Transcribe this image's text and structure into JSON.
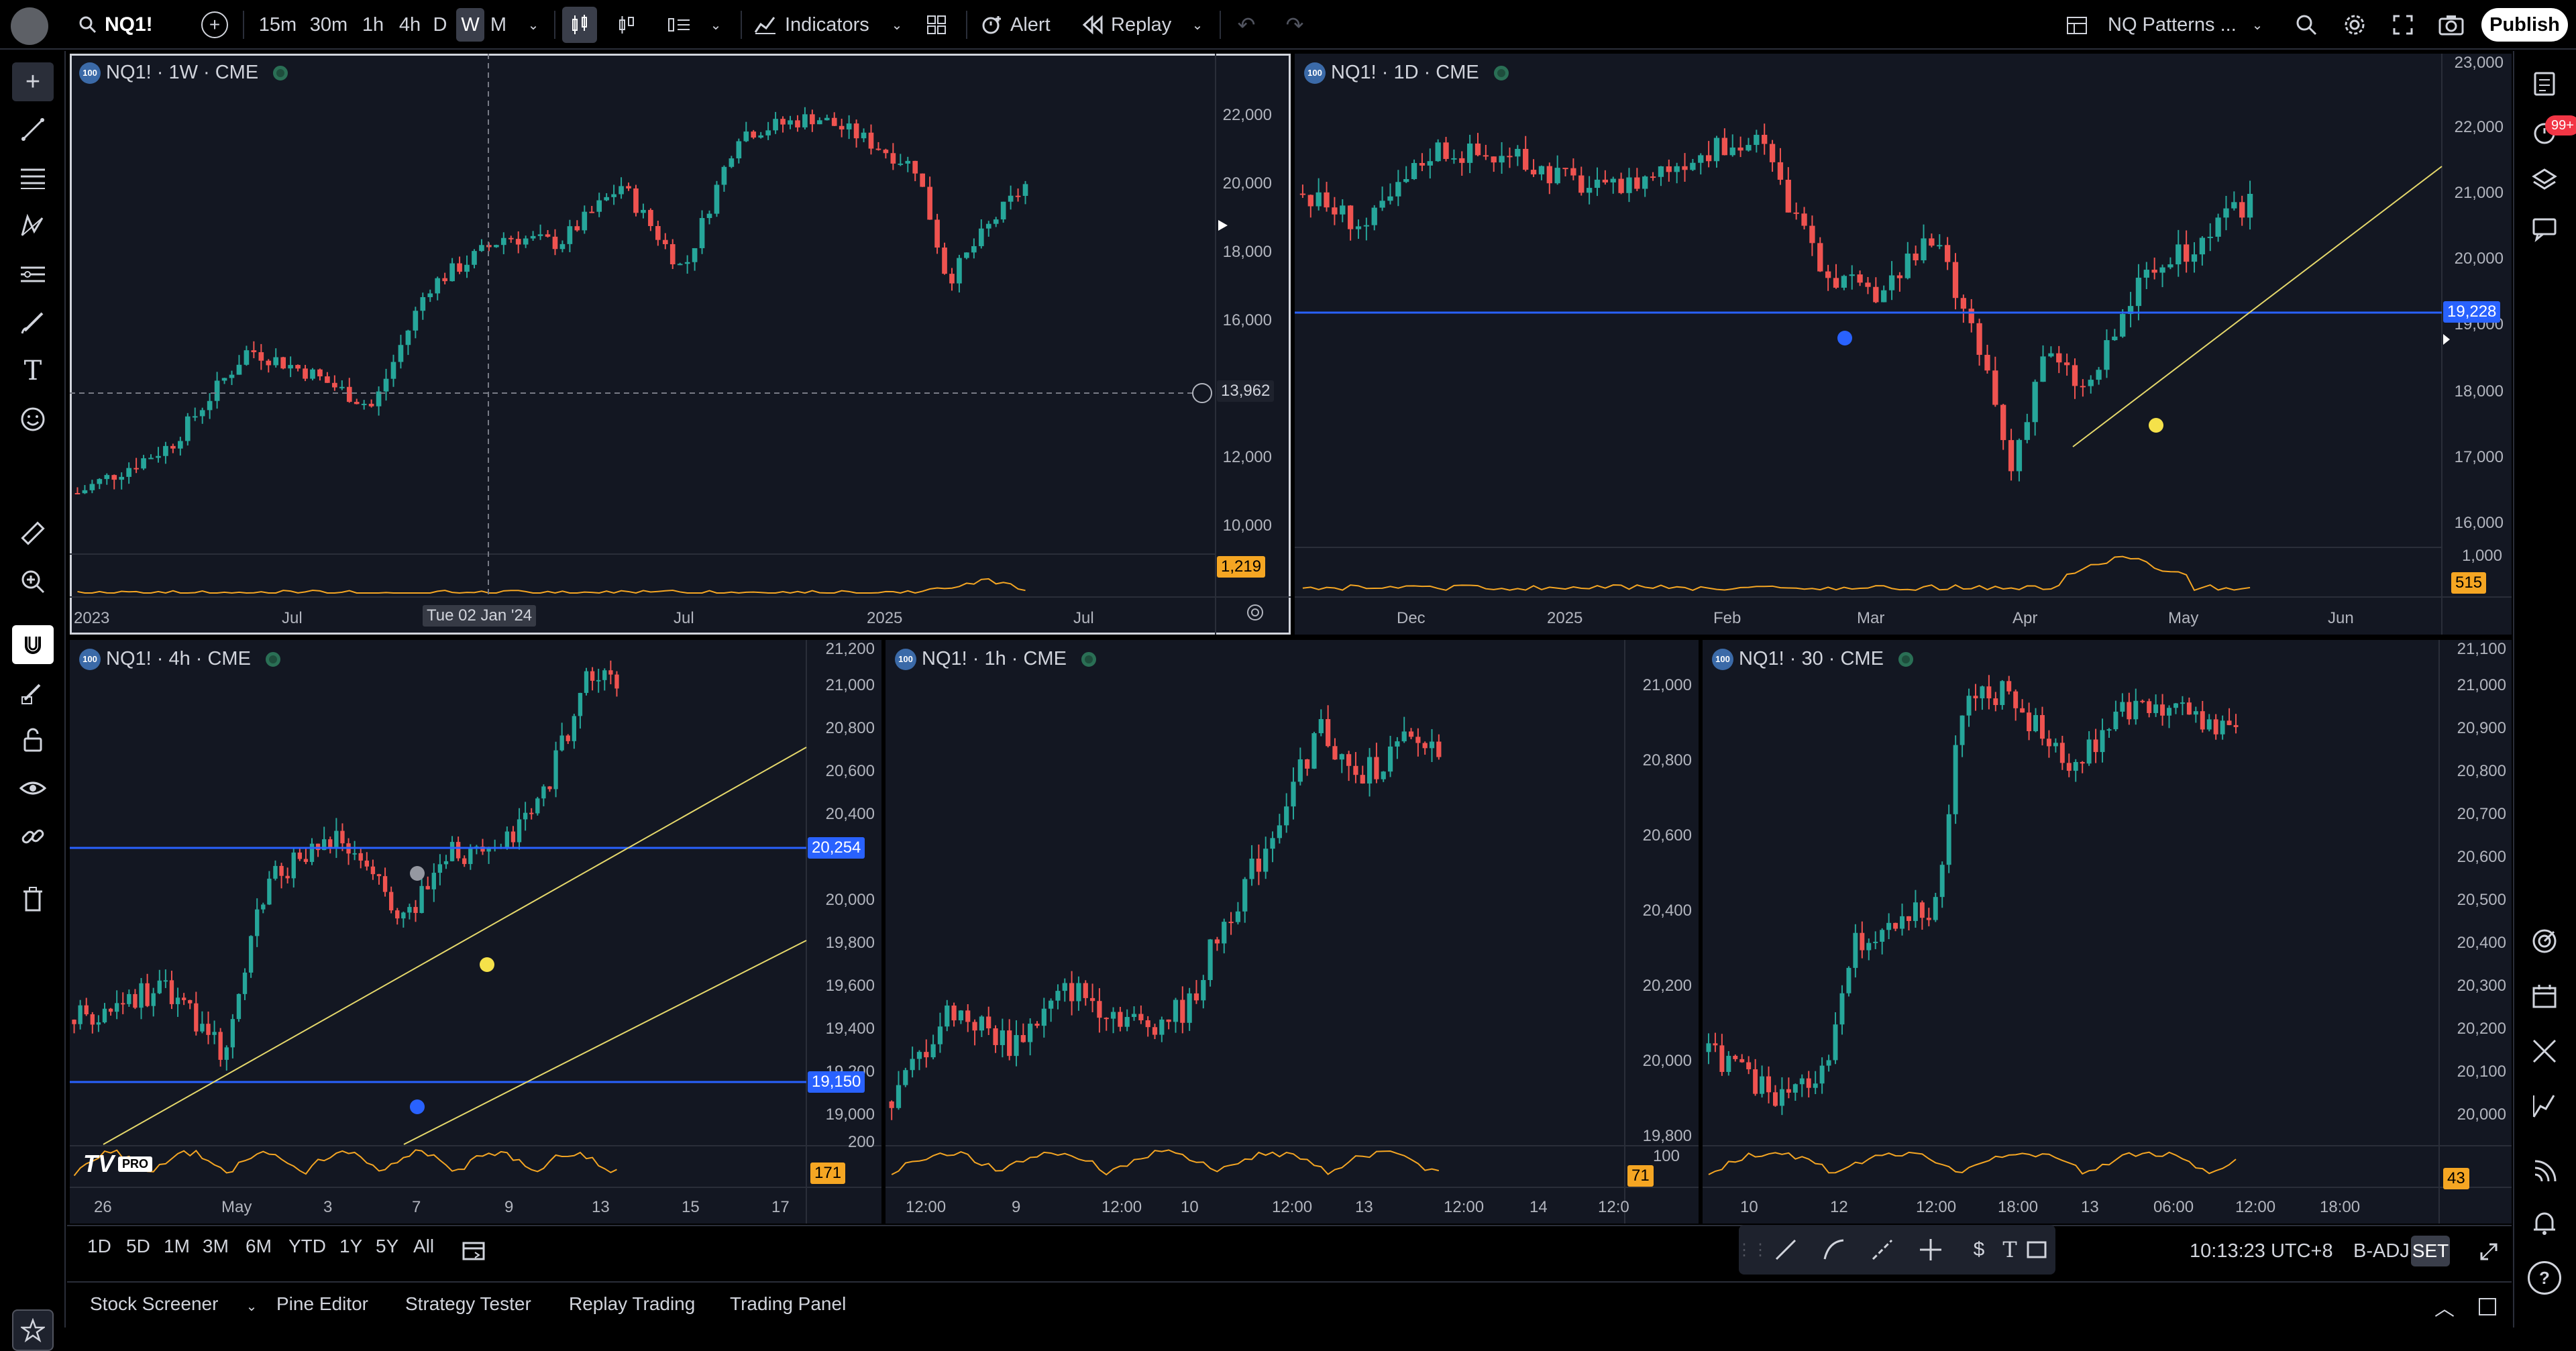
{
  "topbar": {
    "symbol": "NQ1!",
    "intervals": [
      "15m",
      "30m",
      "1h",
      "4h",
      "D",
      "W",
      "M"
    ],
    "active_interval": "W",
    "indicators_label": "Indicators",
    "alert_label": "Alert",
    "replay_label": "Replay",
    "layout_name": "NQ Patterns ...",
    "publish_label": "Publish"
  },
  "notifications_badge": "99+",
  "panes": {
    "weekly": {
      "legend": "NQ1! · 1W · CME",
      "badge": "100",
      "price_axis": [
        "22,000",
        "20,000",
        "18,000",
        "16,000",
        "12,000",
        "10,000"
      ],
      "crosshair_price": "13,962",
      "volume_label": "1,219",
      "crosshair_time": "Tue 02 Jan '24",
      "time_axis": [
        "2023",
        "Jul",
        "Jul",
        "2025",
        "Jul"
      ]
    },
    "daily": {
      "legend": "NQ1! · 1D · CME",
      "badge": "100",
      "price_axis": [
        "23,000",
        "22,000",
        "21,000",
        "20,000",
        "19,000",
        "18,000",
        "17,000",
        "16,000"
      ],
      "line_label": "19,228",
      "volume_axis": "1,000",
      "volume_label": "515",
      "time_axis": [
        "Dec",
        "2025",
        "Feb",
        "Mar",
        "Apr",
        "May",
        "Jun"
      ]
    },
    "h4": {
      "legend": "NQ1! · 4h · CME",
      "badge": "100",
      "price_axis": [
        "21,200",
        "21,000",
        "20,800",
        "20,600",
        "20,400",
        "20,000",
        "19,800",
        "19,600",
        "19,400",
        "19,200",
        "19,000"
      ],
      "line_label_upper": "20,254",
      "line_label_lower": "19,150",
      "volume_axis": "200",
      "volume_label": "171",
      "time_axis": [
        "26",
        "May",
        "3",
        "7",
        "9",
        "13",
        "15",
        "17"
      ],
      "logo_text": "PRO"
    },
    "h1": {
      "legend": "NQ1! · 1h · CME",
      "badge": "100",
      "price_axis": [
        "21,000",
        "20,800",
        "20,600",
        "20,400",
        "20,200",
        "20,000",
        "19,800"
      ],
      "volume_axis": "100",
      "volume_label": "71",
      "time_axis": [
        "12:00",
        "9",
        "12:00",
        "10",
        "12:00",
        "13",
        "12:00",
        "14",
        "12:0"
      ]
    },
    "m30": {
      "legend": "NQ1! · 30 · CME",
      "badge": "100",
      "price_axis": [
        "21,100",
        "21,000",
        "20,900",
        "20,800",
        "20,700",
        "20,600",
        "20,500",
        "20,400",
        "20,300",
        "20,200",
        "20,100",
        "20,000"
      ],
      "volume_label": "43",
      "time_axis": [
        "10",
        "12",
        "12:00",
        "18:00",
        "13",
        "06:00",
        "12:00",
        "18:00"
      ]
    }
  },
  "range_buttons": [
    "1D",
    "5D",
    "1M",
    "3M",
    "6M",
    "YTD",
    "1Y",
    "5Y",
    "All"
  ],
  "status": {
    "clock": "10:13:23 UTC+8",
    "adj": "B-ADJ",
    "session": "SET"
  },
  "bottom_tabs": [
    "Stock Screener",
    "Pine Editor",
    "Strategy Tester",
    "Replay Trading",
    "Trading Panel"
  ],
  "colors": {
    "up": "#26a69a",
    "down": "#ef5350",
    "hline": "#2962ff",
    "trend": "#e5d86b",
    "volume": "#f5a623",
    "pane_bg": "#131722"
  },
  "chart_data": [
    {
      "type": "candlestick",
      "title": "NQ1! · 1W · CME",
      "ylim": [
        9000,
        23500
      ],
      "shape": [
        [
          0,
          11000
        ],
        [
          0.12,
          12400
        ],
        [
          0.22,
          15200
        ],
        [
          0.3,
          14500
        ],
        [
          0.38,
          13500
        ],
        [
          0.45,
          17000
        ],
        [
          0.55,
          18500
        ],
        [
          0.62,
          18300
        ],
        [
          0.7,
          20000
        ],
        [
          0.78,
          17500
        ],
        [
          0.85,
          21500
        ],
        [
          0.95,
          22000
        ],
        [
          1.0,
          21500
        ],
        [
          1.08,
          20500
        ],
        [
          1.12,
          17200
        ],
        [
          1.18,
          19000
        ],
        [
          1.22,
          20000
        ]
      ]
    },
    {
      "type": "candlestick",
      "title": "NQ1! · 1D · CME",
      "ylim": [
        15500,
        23000
      ],
      "shape": [
        [
          0,
          21000
        ],
        [
          0.06,
          20500
        ],
        [
          0.12,
          21700
        ],
        [
          0.2,
          21500
        ],
        [
          0.28,
          21000
        ],
        [
          0.36,
          21600
        ],
        [
          0.42,
          21800
        ],
        [
          0.47,
          20000
        ],
        [
          0.52,
          19400
        ],
        [
          0.58,
          20300
        ],
        [
          0.63,
          18200
        ],
        [
          0.65,
          16800
        ],
        [
          0.68,
          18600
        ],
        [
          0.72,
          18000
        ],
        [
          0.77,
          19700
        ],
        [
          0.82,
          20200
        ],
        [
          0.87,
          20900
        ]
      ]
    },
    {
      "type": "candlestick",
      "title": "NQ1! · 4h · CME",
      "ylim": [
        18900,
        21200
      ],
      "shape": [
        [
          0,
          19400
        ],
        [
          0.15,
          19550
        ],
        [
          0.25,
          19250
        ],
        [
          0.32,
          20050
        ],
        [
          0.38,
          20150
        ],
        [
          0.45,
          20250
        ],
        [
          0.55,
          19850
        ],
        [
          0.62,
          20200
        ],
        [
          0.7,
          20150
        ],
        [
          0.78,
          20450
        ],
        [
          0.85,
          21000
        ],
        [
          0.9,
          20950
        ]
      ]
    },
    {
      "type": "candlestick",
      "title": "NQ1! · 1h · CME",
      "ylim": [
        19750,
        21100
      ],
      "shape": [
        [
          0,
          19900
        ],
        [
          0.1,
          20150
        ],
        [
          0.2,
          20050
        ],
        [
          0.3,
          20200
        ],
        [
          0.42,
          20100
        ],
        [
          0.5,
          20150
        ],
        [
          0.55,
          20350
        ],
        [
          0.62,
          20550
        ],
        [
          0.72,
          20900
        ],
        [
          0.78,
          20750
        ],
        [
          0.86,
          20850
        ],
        [
          0.92,
          20850
        ]
      ]
    },
    {
      "type": "candlestick",
      "title": "NQ1! · 30 · CME",
      "ylim": [
        19950,
        21150
      ],
      "shape": [
        [
          0,
          20150
        ],
        [
          0.1,
          20050
        ],
        [
          0.18,
          20100
        ],
        [
          0.22,
          20400
        ],
        [
          0.35,
          20500
        ],
        [
          0.38,
          20950
        ],
        [
          0.45,
          21000
        ],
        [
          0.55,
          20800
        ],
        [
          0.62,
          20950
        ],
        [
          0.72,
          20950
        ],
        [
          0.8,
          20900
        ]
      ]
    }
  ]
}
